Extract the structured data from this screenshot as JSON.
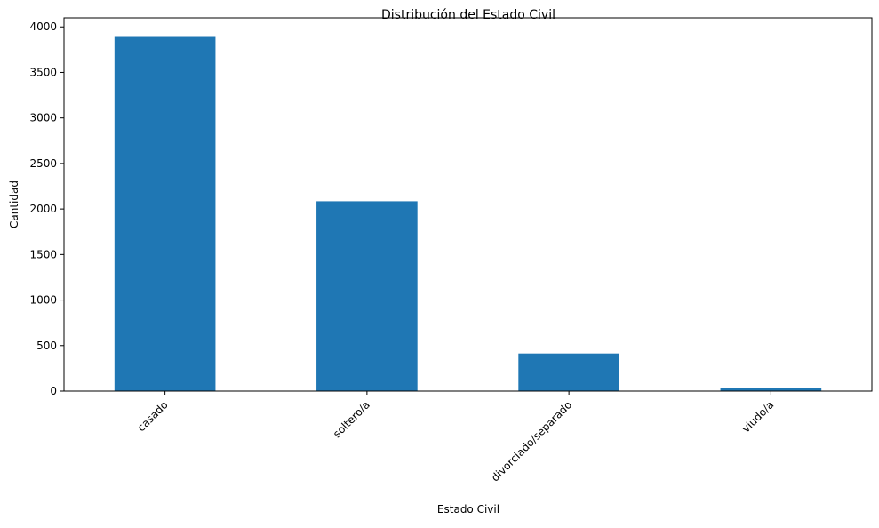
{
  "chart_data": {
    "type": "bar",
    "title": "Distribución del Estado Civil",
    "xlabel": "Estado Civil",
    "ylabel": "Cantidad",
    "categories": [
      "casado",
      "soltero/a",
      "divorciado/separado",
      "viudo/a"
    ],
    "values": [
      3890,
      2085,
      413,
      30
    ],
    "ylim": [
      0,
      4100
    ],
    "yticks": [
      0,
      500,
      1000,
      1500,
      2000,
      2500,
      3000,
      3500,
      4000
    ],
    "grid": false,
    "bar_color": "#1f77b4"
  }
}
